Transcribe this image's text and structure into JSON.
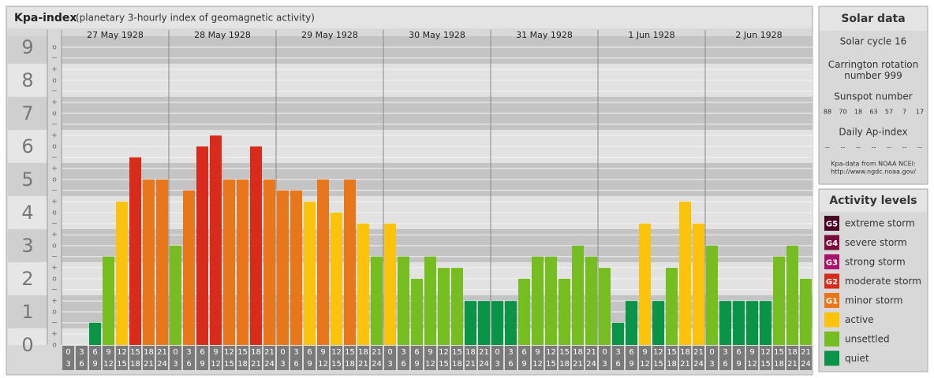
{
  "chart_data": {
    "type": "bar",
    "title": "Kpa-index",
    "subtitle": "(planetary 3-hourly index of geomagnetic activity)",
    "ylim": [
      0,
      9.33
    ],
    "yticks": [
      0,
      1,
      2,
      3,
      4,
      5,
      6,
      7,
      8,
      9
    ],
    "yminor": [
      {
        "value": 0,
        "label": "o"
      },
      {
        "value": 0.33,
        "label": "+"
      },
      {
        "value": 0.67,
        "label": "−"
      },
      {
        "value": 1,
        "label": "o"
      },
      {
        "value": 1.33,
        "label": "+"
      },
      {
        "value": 1.67,
        "label": "−"
      },
      {
        "value": 2,
        "label": "o"
      },
      {
        "value": 2.33,
        "label": "+"
      },
      {
        "value": 2.67,
        "label": "−"
      },
      {
        "value": 3,
        "label": "o"
      },
      {
        "value": 3.33,
        "label": "+"
      },
      {
        "value": 3.67,
        "label": "−"
      },
      {
        "value": 4,
        "label": "o"
      },
      {
        "value": 4.33,
        "label": "+"
      },
      {
        "value": 4.67,
        "label": "−"
      },
      {
        "value": 5,
        "label": "o"
      },
      {
        "value": 5.33,
        "label": "+"
      },
      {
        "value": 5.67,
        "label": "−"
      },
      {
        "value": 6,
        "label": "o"
      },
      {
        "value": 6.33,
        "label": "+"
      },
      {
        "value": 6.67,
        "label": "−"
      },
      {
        "value": 7,
        "label": "o"
      },
      {
        "value": 7.33,
        "label": "+"
      },
      {
        "value": 7.67,
        "label": "−"
      },
      {
        "value": 8,
        "label": "o"
      },
      {
        "value": 8.33,
        "label": "+"
      },
      {
        "value": 8.67,
        "label": "−"
      },
      {
        "value": 9,
        "label": "o"
      }
    ],
    "hours": [
      [
        "0",
        "3"
      ],
      [
        "3",
        "6"
      ],
      [
        "6",
        "9"
      ],
      [
        "9",
        "12"
      ],
      [
        "12",
        "15"
      ],
      [
        "15",
        "18"
      ],
      [
        "18",
        "21"
      ],
      [
        "21",
        "24"
      ]
    ],
    "days": [
      {
        "date": "27 May 1928",
        "values": [
          0,
          0,
          0.67,
          2.67,
          4.33,
          5.67,
          5,
          5
        ],
        "colors": [
          "#0a9447",
          "#0a9447",
          "#0a9447",
          "#76bd22",
          "#fbc30b",
          "#d92b1b",
          "#e8761a",
          "#e8761a"
        ]
      },
      {
        "date": "28 May 1928",
        "values": [
          3,
          4.67,
          6,
          6.33,
          5,
          5,
          6,
          5
        ],
        "colors": [
          "#76bd22",
          "#e8761a",
          "#d92b1b",
          "#d92b1b",
          "#e8761a",
          "#e8761a",
          "#d92b1b",
          "#e8761a"
        ]
      },
      {
        "date": "29 May 1928",
        "values": [
          4.67,
          4.67,
          4.33,
          5,
          4,
          5,
          3.67,
          2.67
        ],
        "colors": [
          "#e8761a",
          "#e8761a",
          "#fbc30b",
          "#e8761a",
          "#fbc30b",
          "#e8761a",
          "#fbc30b",
          "#76bd22"
        ]
      },
      {
        "date": "30 May 1928",
        "values": [
          3.67,
          2.67,
          2,
          2.67,
          2.33,
          2.33,
          1.33,
          1.33
        ],
        "colors": [
          "#fbc30b",
          "#76bd22",
          "#76bd22",
          "#76bd22",
          "#76bd22",
          "#76bd22",
          "#0a9447",
          "#0a9447"
        ]
      },
      {
        "date": "31 May 1928",
        "values": [
          1.33,
          1.33,
          2,
          2.67,
          2.67,
          2,
          3,
          2.67
        ],
        "colors": [
          "#0a9447",
          "#0a9447",
          "#76bd22",
          "#76bd22",
          "#76bd22",
          "#76bd22",
          "#76bd22",
          "#76bd22"
        ]
      },
      {
        "date": "1 Jun 1928",
        "values": [
          2.33,
          0.67,
          1.33,
          3.67,
          1.33,
          2.33,
          4.33,
          3.67
        ],
        "colors": [
          "#76bd22",
          "#0a9447",
          "#0a9447",
          "#fbc30b",
          "#0a9447",
          "#76bd22",
          "#fbc30b",
          "#fbc30b"
        ]
      },
      {
        "date": "2 Jun 1928",
        "values": [
          3,
          1.33,
          1.33,
          1.33,
          1.33,
          2.67,
          3,
          2
        ],
        "colors": [
          "#76bd22",
          "#0a9447",
          "#0a9447",
          "#0a9447",
          "#0a9447",
          "#76bd22",
          "#76bd22",
          "#76bd22"
        ]
      }
    ]
  },
  "solar_data": {
    "title": "Solar data",
    "cycle": "Solar cycle 16",
    "carrington": "Carrington rotation number 999",
    "sunspot_title": "Sunspot number",
    "sunspots": [
      88,
      70,
      18,
      63,
      57,
      7,
      17
    ],
    "ap_title": "Daily Ap-index",
    "ap_values": [
      "--",
      "--",
      "--",
      "--",
      "--",
      "--",
      "--"
    ],
    "source": "Kpa-data from NOAA NCEI:",
    "url": "http://www.ngdc.noaa.gov/"
  },
  "activity": {
    "title": "Activity levels",
    "levels": [
      {
        "code": "G5",
        "name": "extreme storm",
        "color": "#4a0022"
      },
      {
        "code": "G4",
        "name": "severe storm",
        "color": "#7a0c3e"
      },
      {
        "code": "G3",
        "name": "strong storm",
        "color": "#a8136b"
      },
      {
        "code": "G2",
        "name": "moderate storm",
        "color": "#d92b1b"
      },
      {
        "code": "G1",
        "name": "minor storm",
        "color": "#e8761a"
      },
      {
        "code": "",
        "name": "active",
        "color": "#fbc30b"
      },
      {
        "code": "",
        "name": "unsettled",
        "color": "#76bd22"
      },
      {
        "code": "",
        "name": "quiet",
        "color": "#0a9447"
      }
    ]
  }
}
